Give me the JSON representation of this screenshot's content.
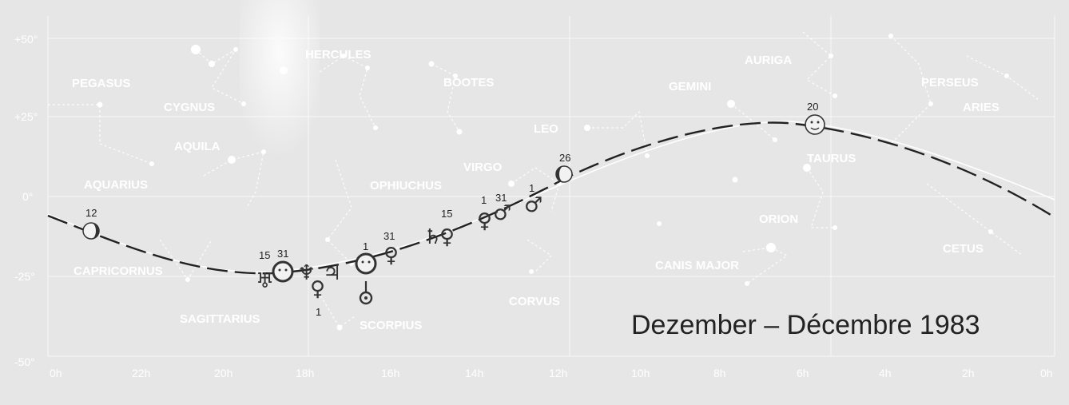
{
  "title": "Dezember – Décembre 1983",
  "dec_axis": [
    "+50°",
    "+25°",
    "0°",
    "-25°",
    "-50°"
  ],
  "ra_axis": [
    "0h",
    "22h",
    "20h",
    "18h",
    "16h",
    "14h",
    "12h",
    "10h",
    "8h",
    "6h",
    "4h",
    "2h",
    "0h"
  ],
  "constellations": [
    "PEGASUS",
    "CYGNUS",
    "HERCULES",
    "BOOTES",
    "AURIGA",
    "PERSEUS",
    "GEMINI",
    "ARIES",
    "AQUILA",
    "LEO",
    "AQUARIUS",
    "OPHIUCHUS",
    "VIRGO",
    "TAURUS",
    "ORION",
    "CAPRICORNUS",
    "CANIS MAJOR",
    "CETUS",
    "SAGITTARIUS",
    "SCORPIUS",
    "CORVUS"
  ],
  "date_labels": [
    "12",
    "15",
    "31",
    "1",
    "1",
    "31",
    "15",
    "1",
    "31",
    "1",
    "26",
    "20"
  ],
  "colors": {
    "background": "#e6e6e6",
    "grid": "#ffffff",
    "ink": "#222222"
  },
  "icons": [
    "moon-phase-icon",
    "sun-icon",
    "mercury-icon",
    "venus-icon",
    "mars-icon",
    "jupiter-icon",
    "saturn-icon",
    "uranus-icon",
    "neptune-icon"
  ]
}
